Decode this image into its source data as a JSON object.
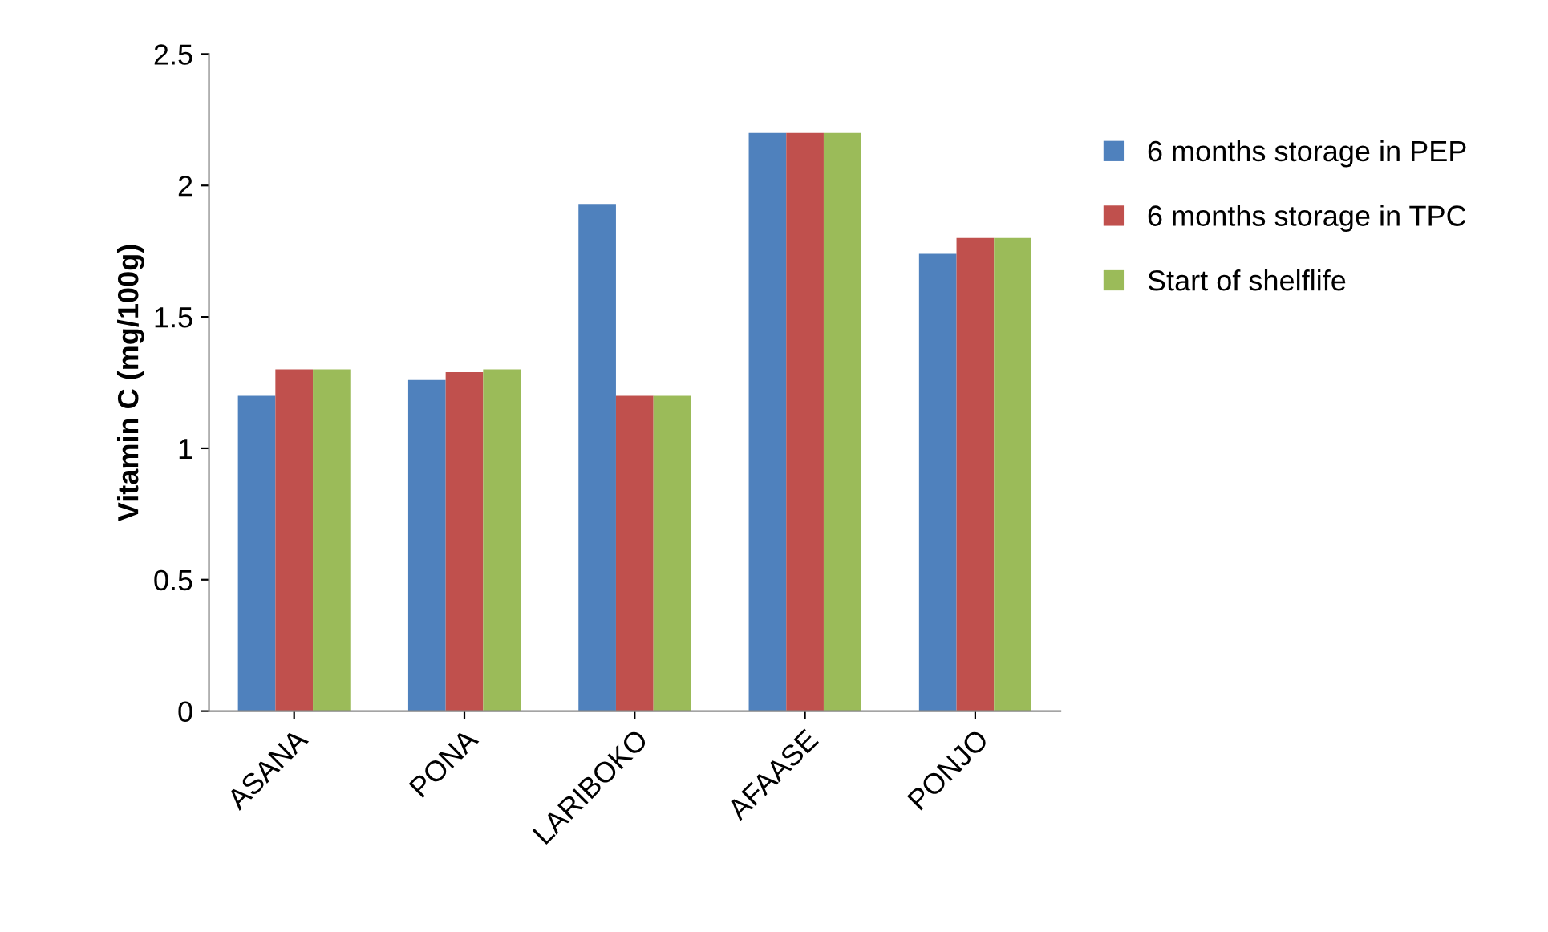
{
  "chart_data": {
    "type": "bar",
    "ylabel": "Vitamin C (mg/100g)",
    "categories": [
      "ASANA",
      "PONA",
      "LARIBOKO",
      "AFAASE",
      "PONJO"
    ],
    "series": [
      {
        "name": "6 months storage in PEP",
        "color": "#4f81bd",
        "values": [
          1.2,
          1.26,
          1.93,
          2.2,
          1.74
        ]
      },
      {
        "name": "6 months storage in TPC",
        "color": "#c0504d",
        "values": [
          1.3,
          1.29,
          1.2,
          2.2,
          1.8
        ]
      },
      {
        "name": "Start of shelflife",
        "color": "#9bbb59",
        "values": [
          1.3,
          1.3,
          1.2,
          2.2,
          1.8
        ]
      }
    ],
    "ylim": [
      0,
      2.5
    ],
    "yticks": [
      0,
      0.5,
      1,
      1.5,
      2,
      2.5
    ],
    "grid": false,
    "legend": "right"
  }
}
